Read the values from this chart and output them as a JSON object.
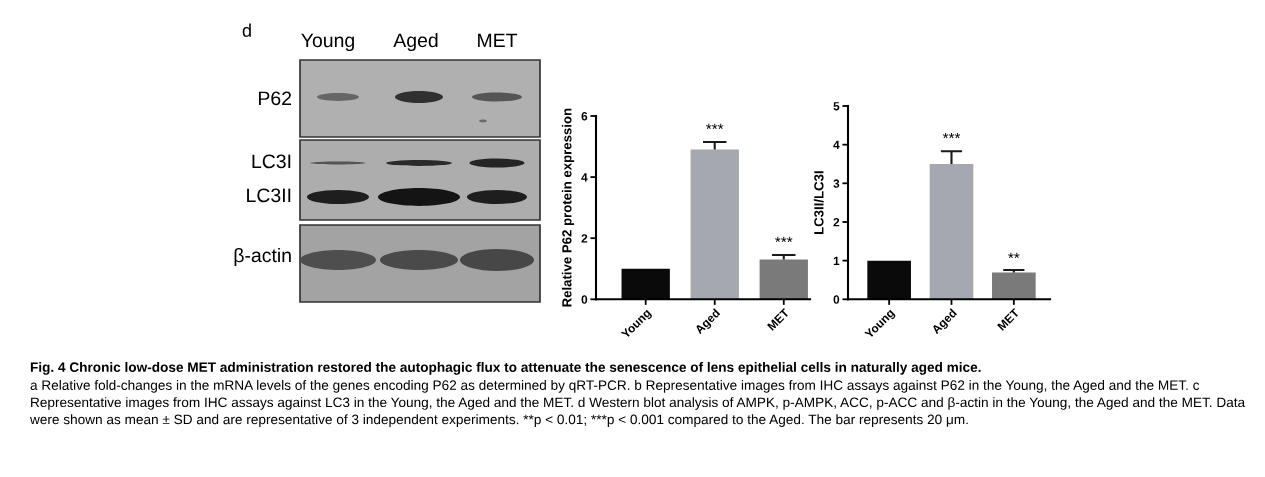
{
  "chart_data": [
    {
      "type": "other",
      "title": "d",
      "categories": [
        "Young",
        "Aged",
        "MET"
      ],
      "y_categories": [
        "P62",
        "LC3I",
        "LC3II",
        "β-actin"
      ]
    },
    {
      "type": "bar",
      "categories": [
        "Young",
        "Aged",
        "MET"
      ],
      "values": [
        1.0,
        4.9,
        1.3
      ],
      "colors": [
        "#0a0a0a",
        "#a5a8ae",
        "#7a7a7a"
      ],
      "errors": [
        null,
        [
          4.9,
          5.15
        ],
        [
          1.3,
          1.45
        ]
      ],
      "ylabel": "Relative P62 protein expression",
      "ylim": [
        0,
        6
      ],
      "yticks": [
        0,
        2,
        4,
        6
      ],
      "annotations": [
        {
          "text": "***",
          "x": "Aged",
          "y": 5.3
        },
        {
          "text": "***",
          "x": "MET",
          "y": 1.6
        }
      ]
    },
    {
      "type": "bar",
      "categories": [
        "Young",
        "Aged",
        "MET"
      ],
      "values": [
        1.0,
        3.5,
        0.69
      ],
      "colors": [
        "#0a0a0a",
        "#a5a8ae",
        "#7a7a7a"
      ],
      "errors": [
        null,
        [
          3.5,
          3.83
        ],
        [
          0.69,
          0.76
        ]
      ],
      "ylabel": "LC3II/LC3I",
      "ylim": [
        0,
        5
      ],
      "yticks": [
        0,
        1,
        2,
        3,
        4,
        5
      ],
      "annotations": [
        {
          "text": "***",
          "x": "Aged",
          "y": 3.95
        },
        {
          "text": "**",
          "x": "MET",
          "y": 0.85
        }
      ]
    },
    {
      "type": "other",
      "title": "Fig. 4 Chronic low-dose MET administration restored the autophagic flux to attenuate the senescence of lens epithelial cells in naturally aged mice.",
      "annotations": [
        "a Relative fold-changes in the mRNA levels of the genes encoding P62 as determined by qRT-PCR. b Representative images from IHC assays against P62 in the Young, the Aged and the MET. c Representative images from IHC assays against LC3 in the Young, the Aged and the MET. d Western blot analysis of AMPK, p-AMPK, ACC, p-ACC and β-actin in the Young, the Aged and the MET. Data were shown as mean ± SD and are representative of 3 independent experiments. **p < 0.01; ***p < 0.001 compared to the Aged. The bar represents 20 μm."
      ]
    }
  ]
}
